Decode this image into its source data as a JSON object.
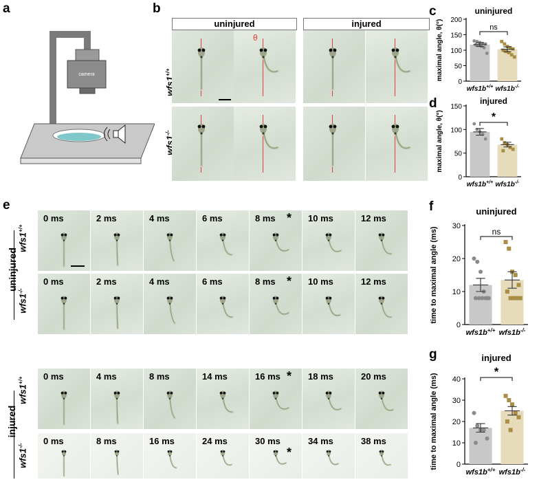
{
  "panels": {
    "a": {
      "label": "a",
      "camera_text": "camera"
    },
    "b": {
      "label": "b",
      "col_uninjured": "uninjured",
      "col_injured": "injured",
      "row1": "wfs1",
      "row1_sup": "+/+",
      "row2": "wfs1",
      "row2_sup": "-/-",
      "theta": "θ"
    },
    "c": {
      "label": "c"
    },
    "d": {
      "label": "d"
    },
    "e": {
      "label": "e",
      "group_uninjured": "uninjured",
      "group_injured": "injured",
      "geno_wt": "wfs1",
      "geno_wt_sup": "+/+",
      "geno_mut": "wfs1",
      "geno_mut_sup": "-/-",
      "rows": [
        {
          "times": [
            "0 ms",
            "2 ms",
            "4 ms",
            "6 ms",
            "8 ms",
            "10 ms",
            "12 ms"
          ],
          "star_index": 4
        },
        {
          "times": [
            "0 ms",
            "2 ms",
            "4 ms",
            "6 ms",
            "8 ms",
            "10 ms",
            "12 ms"
          ],
          "star_index": 4
        },
        {
          "times": [
            "0 ms",
            "4 ms",
            "8 ms",
            "14 ms",
            "16 ms",
            "18 ms",
            "20 ms"
          ],
          "star_index": 4
        },
        {
          "times": [
            "0 ms",
            "8 ms",
            "16 ms",
            "24 ms",
            "30 ms",
            "34 ms",
            "38 ms"
          ],
          "star_index": 4
        }
      ],
      "star": "*"
    },
    "f": {
      "label": "f"
    },
    "g": {
      "label": "g"
    }
  },
  "chart_data": [
    {
      "id": "c",
      "type": "bar",
      "title": "uninjured",
      "ylabel": "maximal angle, θ(°)",
      "categories": [
        "wfs1b+/+",
        "wfs1b-/-"
      ],
      "cat_base": "wfs1b",
      "cat_sup": [
        "+/+",
        "-/-"
      ],
      "ylim": [
        0,
        200
      ],
      "yticks": [
        0,
        50,
        100,
        150,
        200
      ],
      "values": [
        118,
        103
      ],
      "errors": [
        6,
        8
      ],
      "points": [
        [
          130,
          128,
          125,
          122,
          120,
          118,
          116,
          112,
          108,
          90
        ],
        [
          128,
          120,
          112,
          108,
          104,
          100,
          96,
          92,
          85,
          78
        ]
      ],
      "significance": "ns"
    },
    {
      "id": "d",
      "type": "bar",
      "title": "injured",
      "ylabel": "maximal angle, θ(°)",
      "categories": [
        "wfs1b+/+",
        "wfs1b-/-"
      ],
      "cat_base": "wfs1b",
      "cat_sup": [
        "+/+",
        "-/-"
      ],
      "ylim": [
        0,
        150
      ],
      "yticks": [
        0,
        50,
        100,
        150
      ],
      "values": [
        95,
        68
      ],
      "errors": [
        7,
        5
      ],
      "points": [
        [
          112,
          100,
          95,
          90,
          80
        ],
        [
          80,
          72,
          68,
          62,
          58,
          55
        ]
      ],
      "significance": "*"
    },
    {
      "id": "f",
      "type": "bar",
      "title": "uninjured",
      "ylabel": "time to maximal angle (ms)",
      "categories": [
        "wfs1b+/+",
        "wfs1b-/-"
      ],
      "cat_base": "wfs1b",
      "cat_sup": [
        "+/+",
        "-/-"
      ],
      "ylim": [
        0,
        30
      ],
      "yticks": [
        0,
        10,
        20,
        30
      ],
      "values": [
        12,
        13.5
      ],
      "errors": [
        2,
        2.5
      ],
      "points": [
        [
          20,
          19,
          16,
          10,
          8,
          8,
          8,
          8,
          8,
          8
        ],
        [
          25,
          23,
          16,
          15,
          12,
          10,
          8,
          8,
          8,
          8
        ]
      ],
      "significance": "ns"
    },
    {
      "id": "g",
      "type": "bar",
      "title": "injured",
      "ylabel": "time to maximal angle (ms)",
      "categories": [
        "wfs1b+/+",
        "wfs1b-/-"
      ],
      "cat_base": "wfs1b",
      "cat_sup": [
        "+/+",
        "-/-"
      ],
      "ylim": [
        0,
        40
      ],
      "yticks": [
        0,
        10,
        20,
        30,
        40
      ],
      "values": [
        17,
        25
      ],
      "errors": [
        2,
        2
      ],
      "points": [
        [
          24,
          18,
          16,
          16,
          12,
          10
        ],
        [
          32,
          30,
          28,
          24,
          22,
          20,
          16
        ]
      ],
      "significance": "*"
    }
  ]
}
